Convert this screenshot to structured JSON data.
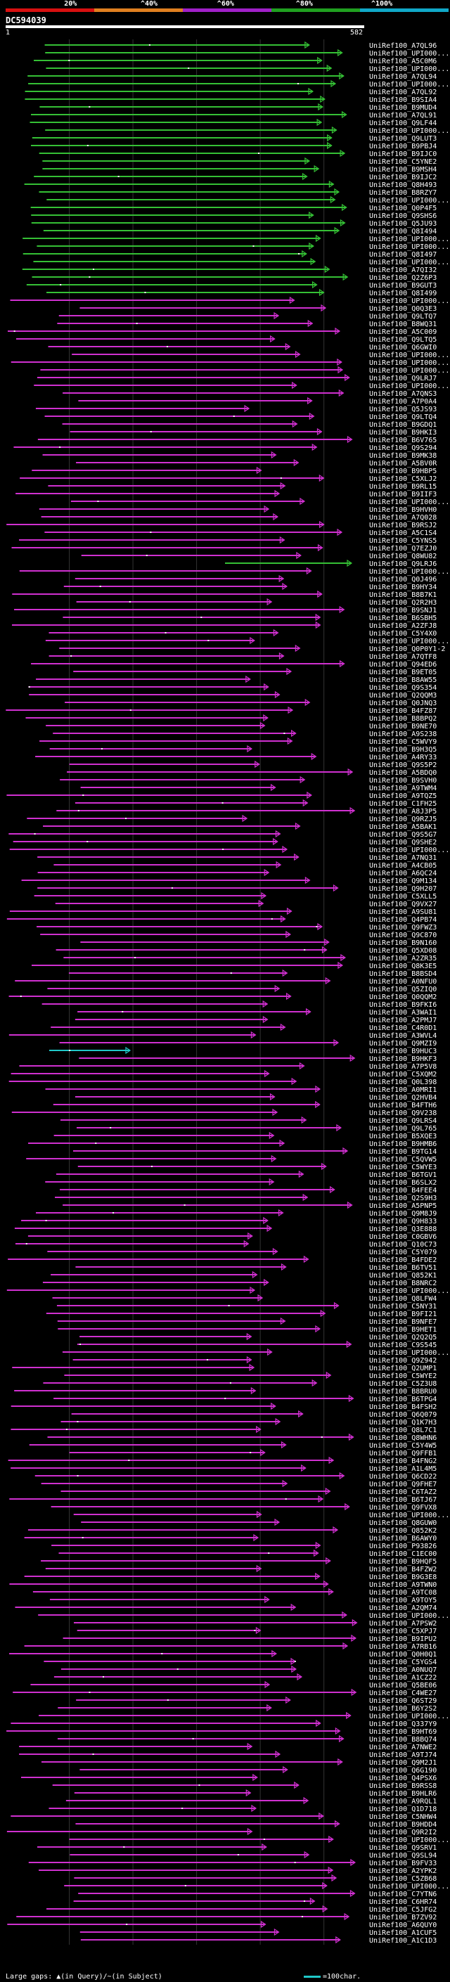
{
  "colors": {
    "background": "#000000",
    "green": "#35c035",
    "magenta": "#d030d0",
    "cyan": "#20c8c8",
    "white": "#ffffff",
    "scale_red": "#d81010",
    "scale_orange": "#e08020",
    "scale_purple": "#a020c8",
    "scale_green": "#20a020",
    "scale_cyan": "#10a8c8"
  },
  "scale": {
    "labels": [
      "20%",
      "^40%",
      "^60%",
      "^80%",
      "^100%"
    ],
    "segment_colors": [
      "#d81010",
      "#e08020",
      "#a020c8",
      "#20a020",
      "#10a8c8"
    ]
  },
  "query": {
    "id": "DC594039",
    "start": "1",
    "end": "582"
  },
  "hits": [
    "UniRef100_A7QL96",
    "UniRef100_UPI000...",
    "UniRef100_A5C0M6",
    "UniRef100_UPI000...",
    "UniRef100_A7QL94",
    "UniRef100_UPI000...",
    "UniRef100_A7QL92",
    "UniRef100_B9SIA4",
    "UniRef100_B9MUD4",
    "UniRef100_A7QL91",
    "UniRef100_Q9LF44",
    "UniRef100_UPI000...",
    "UniRef100_Q9LUT3",
    "UniRef100_B9PBJ4",
    "UniRef100_B9IJC0",
    "UniRef100_C5YNE2",
    "UniRef100_B9MSH4",
    "UniRef100_B9IJC2",
    "UniRef100_Q8H493",
    "UniRef100_B8RZY7",
    "UniRef100_UPI000...",
    "UniRef100_Q0P4F5",
    "UniRef100_Q9SHS6",
    "UniRef100_Q5JU93",
    "UniRef100_Q8I494",
    "UniRef100_UPI000...",
    "UniRef100_UPI000...",
    "UniRef100_Q8I497",
    "UniRef100_UPI000...",
    "UniRef100_A7QI32",
    "UniRef100_Q2Z6P3",
    "UniRef100_B9GUT3",
    "UniRef100_Q8I499",
    "UniRef100_UPI000...",
    "UniRef100_Q0Q3E3",
    "UniRef100_Q9LTQ7",
    "UniRef100_B8WQ31",
    "UniRef100_A5C009",
    "UniRef100_Q9LTQ5",
    "UniRef100_Q6GWI0",
    "UniRef100_UPI000...",
    "UniRef100_UPI000...",
    "UniRef100_UPI000...",
    "UniRef100_Q9LRJ7",
    "UniRef100_UPI000...",
    "UniRef100_A7QNS3",
    "UniRef100_A7P0A4",
    "UniRef100_Q5JS93",
    "UniRef100_Q9LTQ4",
    "UniRef100_B9GDQ1",
    "UniRef100_B9HKI3",
    "UniRef100_B6V765",
    "UniRef100_Q9S294",
    "UniRef100_B9MK38",
    "UniRef100_A5BV0R",
    "UniRef100_B9HBP5",
    "UniRef100_C5XLJ2",
    "UniRef100_B9RL15",
    "UniRef100_B9IIF3",
    "UniRef100_UPI000...",
    "UniRef100_B9HVH0",
    "UniRef100_A7Q028",
    "UniRef100_B9RSJ2",
    "UniRef100_A5C1S4",
    "UniRef100_C5YNS5",
    "UniRef100_Q7EZJ0",
    "UniRef100_Q8WU82",
    "UniRef100_Q9LRJ6",
    "UniRef100_UPI000...",
    "UniRef100_Q0J496",
    "UniRef100_B9HY34",
    "UniRef100_B8B7K1",
    "UniRef100_Q2R2H3",
    "UniRef100_B9SNJ1",
    "UniRef100_B6SBH5",
    "UniRef100_A2ZFJ8",
    "UniRef100_C5Y4X0",
    "UniRef100_UPI000...",
    "UniRef100_Q0P0Y1-2",
    "UniRef100_A7QTF8",
    "UniRef100_Q94ED6",
    "UniRef100_B9ET05",
    "UniRef100_B8AW55",
    "UniRef100_Q9S354",
    "UniRef100_Q2QQM3",
    "UniRef100_Q0JNQ3",
    "UniRef100_B4FZ87",
    "UniRef100_B8BPQ2",
    "UniRef100_B9NE70",
    "UniRef100_A9S238",
    "UniRef100_C5WVY9",
    "UniRef100_B9H3Q5",
    "UniRef100_A4RY33",
    "UniRef100_Q9S5P2",
    "UniRef100_A5BDQ0",
    "UniRef100_B9SVH0",
    "UniRef100_A9TWM4",
    "UniRef100_A9TQZ5",
    "UniRef100_C1FH25",
    "UniRef100_A8J3P5",
    "UniRef100_Q9RZJ5",
    "UniRef100_A5BAK1",
    "UniRef100_Q9S5G7",
    "UniRef100_Q9SHE2",
    "UniRef100_UPI000...",
    "UniRef100_A7NQ31",
    "UniRef100_A4CB05",
    "UniRef100_A6QC24",
    "UniRef100_Q9M134",
    "UniRef100_Q9H207",
    "UniRef100_C5XLL5",
    "UniRef100_Q9VX27",
    "UniRef100_A9SU81",
    "UniRef100_Q4PB74",
    "UniRef100_Q9FWZ3",
    "UniRef100_Q9C870",
    "UniRef100_B9N160",
    "UniRef100_Q5XD08",
    "UniRef100_A2ZR35",
    "UniRef100_Q8K3E5",
    "UniRef100_B8BSD4",
    "UniRef100_A0NFU0",
    "UniRef100_Q5ZIQ0",
    "UniRef100_Q0QQM2",
    "UniRef100_B9FKI6",
    "UniRef100_A3WAI1",
    "UniRef100_A2PMJ7",
    "UniRef100_C4R0D1",
    "UniRef100_A3WVL4",
    "UniRef100_Q9MZI9",
    "UniRef100_B9HUC3",
    "UniRef100_B9HKF3",
    "UniRef100_A7P5V8",
    "UniRef100_C5XQM2",
    "UniRef100_Q0L398",
    "UniRef100_A0MRI1",
    "UniRef100_Q2HVB4",
    "UniRef100_B4FTH6",
    "UniRef100_Q9V238",
    "UniRef100_Q9LRS4",
    "UniRef100_Q9L765",
    "UniRef100_B5XQE3",
    "UniRef100_B9HMB6",
    "UniRef100_B9TG14",
    "UniRef100_C5QVW5",
    "UniRef100_C5WYE3",
    "UniRef100_B6TGV1",
    "UniRef100_B6SLX2",
    "UniRef100_B4FEE4",
    "UniRef100_Q2S9H3",
    "UniRef100_A5PNP5",
    "UniRef100_Q9M8J9",
    "UniRef100_Q9H833",
    "UniRef100_Q3E888",
    "UniRef100_C0GBV6",
    "UniRef100_Q10C73",
    "UniRef100_C5Y079",
    "UniRef100_B4FDE2",
    "UniRef100_B6TV51",
    "UniRef100_Q852K1",
    "UniRef100_B8NRC2",
    "UniRef100_UPI000...",
    "UniRef100_Q8LFW4",
    "UniRef100_C5NY31",
    "UniRef100_B9FI21",
    "UniRef100_B9NFE7",
    "UniRef100_B9HET1",
    "UniRef100_Q2Q2Q5",
    "UniRef100_C9S545",
    "UniRef100_UPI000...",
    "UniRef100_Q9Z942",
    "UniRef100_Q2UMP1",
    "UniRef100_C5WYE2",
    "UniRef100_C5Z3U8",
    "UniRef100_B8BRU0",
    "UniRef100_B6TPG4",
    "UniRef100_B4FSH2",
    "UniRef100_Q6Q079",
    "UniRef100_Q1K7H3",
    "UniRef100_Q8L7C1",
    "UniRef100_Q8WHN6",
    "UniRef100_C5Y4W5",
    "UniRef100_Q9FFB1",
    "UniRef100_B4FNG2",
    "UniRef100_A1L4M5",
    "UniRef100_Q6CD22",
    "UniRef100_Q9FHE7",
    "UniRef100_C6TAZ2",
    "UniRef100_B6TJ67",
    "UniRef100_Q9FVX8",
    "UniRef100_UPI000...",
    "UniRef100_Q8GUW0",
    "UniRef100_Q852K2",
    "UniRef100_B6AWY0",
    "UniRef100_P93826",
    "UniRef100_C1EC00",
    "UniRef100_B9HQF5",
    "UniRef100_B4FZW2",
    "UniRef100_B9G3E8",
    "UniRef100_A9TWN0",
    "UniRef100_A9TC08",
    "UniRef100_A9TOY5",
    "UniRef100_A2QM74",
    "UniRef100_UPI000...",
    "UniRef100_A7PSW2",
    "UniRef100_C5XPJ7",
    "UniRef100_B9IPU2",
    "UniRef100_A7RB16",
    "UniRef100_Q0H0Q1",
    "UniRef100_C5YGS4",
    "UniRef100_A0NUQ7",
    "UniRef100_A1CZ22",
    "UniRef100_Q5BE06",
    "UniRef100_C4WE27",
    "UniRef100_Q6ST29",
    "UniRef100_B6Y2S2",
    "UniRef100_UPI000...",
    "UniRef100_Q337Y9",
    "UniRef100_B9HT69",
    "UniRef100_B8BQ74",
    "UniRef100_A7NWE2",
    "UniRef100_A9TJ74",
    "UniRef100_Q9M2J1",
    "UniRef100_Q6G190",
    "UniRef100_Q4PSX6",
    "UniRef100_B9RSS8",
    "UniRef100_B9HLR6",
    "UniRef100_A9RQL1",
    "UniRef100_Q1D718",
    "UniRef100_C5NHW4",
    "UniRef100_B9HDD4",
    "UniRef100_Q9R2I2",
    "UniRef100_UPI000...",
    "UniRef100_Q9SRV1",
    "UniRef100_Q9SL94",
    "UniRef100_B9FV33",
    "UniRef100_A2YPK2",
    "UniRef100_C5ZB68",
    "UniRef100_UPI000...",
    "UniRef100_C7YTN6",
    "UniRef100_C6HR74",
    "UniRef100_C5JFG2",
    "UniRef100_B7ZV92",
    "UniRef100_A6QUY0",
    "UniRef100_A1CUF5",
    "UniRef100_A1C1D3"
  ],
  "legend": {
    "text": "Large gaps: ▲(in Query)/~(in Subject)",
    "scale_text": "=100char."
  }
}
